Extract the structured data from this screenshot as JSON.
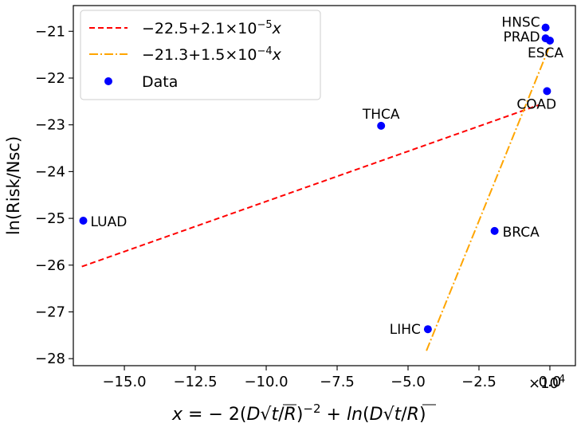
{
  "chart_data": {
    "type": "scatter",
    "title": "",
    "xlabel": "",
    "ylabel": "ln(Risk/Nsc)",
    "x_scale_label": "×10",
    "x_scale_exponent": "4",
    "xlim": [
      -16.8,
      0.9
    ],
    "ylim": [
      -28.15,
      -20.45
    ],
    "xticks": [
      -15.0,
      -12.5,
      -10.0,
      -7.5,
      -5.0,
      -2.5,
      0.0
    ],
    "xtick_labels": [
      "−15.0",
      "−12.5",
      "−10.0",
      "−7.5",
      "−5.0",
      "−2.5",
      "0.0"
    ],
    "yticks": [
      -28,
      -27,
      -26,
      -25,
      -24,
      -23,
      -22,
      -21
    ],
    "ytick_labels": [
      "−28",
      "−27",
      "−26",
      "−25",
      "−24",
      "−23",
      "−22",
      "−21"
    ],
    "grid": false,
    "legend_position": "top-left",
    "points": [
      {
        "label": "HNSC",
        "x": -0.15,
        "y": -20.92
      },
      {
        "label": "PRAD",
        "x": -0.15,
        "y": -21.15
      },
      {
        "label": "ESCA",
        "x": 0.0,
        "y": -21.2
      },
      {
        "label": "COAD",
        "x": -0.1,
        "y": -22.28
      },
      {
        "label": "THCA",
        "x": -5.95,
        "y": -23.02
      },
      {
        "label": "LUAD",
        "x": -16.45,
        "y": -25.05
      },
      {
        "label": "BRCA",
        "x": -1.95,
        "y": -25.27
      },
      {
        "label": "LIHC",
        "x": -4.3,
        "y": -27.37
      }
    ],
    "series": [
      {
        "name_prefix": "−22.5+2.1×10",
        "name_exp": "−5",
        "name_var": "x",
        "kind": "line",
        "style": "dashed",
        "color": "#ff0000",
        "x": [
          -16.5,
          -0.4
        ],
        "y": [
          -26.03,
          -22.58
        ]
      },
      {
        "name_prefix": "−21.3+1.5×10",
        "name_exp": "−4",
        "name_var": "x",
        "kind": "line",
        "style": "dashdot",
        "color": "#ffa500",
        "x": [
          -4.35,
          0.0
        ],
        "y": [
          -27.83,
          -21.3
        ]
      },
      {
        "name": "Data",
        "kind": "scatter",
        "color": "#0000ff"
      }
    ]
  }
}
